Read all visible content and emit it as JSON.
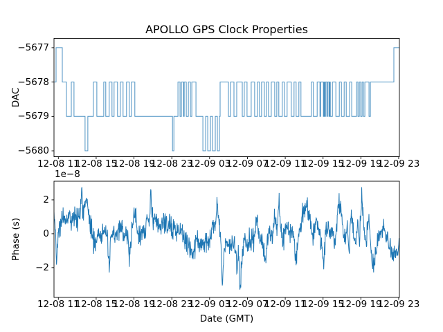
{
  "title": "APOLLO GPS Clock Properties",
  "colors": {
    "line_color": "#1f77b4",
    "axis_color": "#000000",
    "text_color": "#000000",
    "background": "#ffffff"
  },
  "x_axis": {
    "label": "Date (GMT)",
    "tick_labels": [
      "12-08 11",
      "12-08 15",
      "12-08 19",
      "12-08 23",
      "12-09 03",
      "12-09 07",
      "12-09 11",
      "12-09 15",
      "12-09 19",
      "12-09 23"
    ],
    "tick_positions": [
      0.0126,
      0.1221,
      0.2316,
      0.3411,
      0.4505,
      0.56,
      0.6695,
      0.779,
      0.8884,
      0.9979
    ]
  },
  "chart_data": [
    {
      "type": "step",
      "title": "APOLLO GPS Clock Properties",
      "ylabel": "DAC",
      "xlabel": "",
      "yticks": [
        -5677,
        -5678,
        -5679,
        -5680
      ],
      "ytick_labels": [
        "−5677",
        "−5678",
        "−5679",
        "−5680"
      ],
      "ylim": [
        -5680.17,
        -5676.73
      ],
      "x_tick_labels": [
        "12-08 11",
        "12-08 15",
        "12-08 19",
        "12-08 23",
        "12-09 03",
        "12-09 07",
        "12-09 11",
        "12-09 15",
        "12-09 19",
        "12-09 23"
      ],
      "grid": false,
      "legend": false,
      "steps": [
        [
          0.0,
          -5678
        ],
        [
          0.006,
          -5677
        ],
        [
          0.024,
          -5678
        ],
        [
          0.036,
          -5679
        ],
        [
          0.05,
          -5678
        ],
        [
          0.058,
          -5679
        ],
        [
          0.09,
          -5680
        ],
        [
          0.098,
          -5679
        ],
        [
          0.114,
          -5678
        ],
        [
          0.124,
          -5679
        ],
        [
          0.144,
          -5678
        ],
        [
          0.15,
          -5679
        ],
        [
          0.16,
          -5678
        ],
        [
          0.168,
          -5679
        ],
        [
          0.174,
          -5678
        ],
        [
          0.184,
          -5679
        ],
        [
          0.192,
          -5678
        ],
        [
          0.2,
          -5679
        ],
        [
          0.21,
          -5678
        ],
        [
          0.218,
          -5679
        ],
        [
          0.224,
          -5678
        ],
        [
          0.234,
          -5679
        ],
        [
          0.343,
          -5680
        ],
        [
          0.347,
          -5679
        ],
        [
          0.359,
          -5678
        ],
        [
          0.365,
          -5679
        ],
        [
          0.369,
          -5678
        ],
        [
          0.375,
          -5679
        ],
        [
          0.377,
          -5678
        ],
        [
          0.383,
          -5679
        ],
        [
          0.389,
          -5678
        ],
        [
          0.395,
          -5679
        ],
        [
          0.399,
          -5678
        ],
        [
          0.411,
          -5679
        ],
        [
          0.431,
          -5680
        ],
        [
          0.439,
          -5679
        ],
        [
          0.445,
          -5680
        ],
        [
          0.453,
          -5679
        ],
        [
          0.459,
          -5680
        ],
        [
          0.467,
          -5679
        ],
        [
          0.473,
          -5680
        ],
        [
          0.479,
          -5679
        ],
        [
          0.481,
          -5678
        ],
        [
          0.505,
          -5679
        ],
        [
          0.511,
          -5678
        ],
        [
          0.521,
          -5679
        ],
        [
          0.529,
          -5678
        ],
        [
          0.545,
          -5679
        ],
        [
          0.551,
          -5678
        ],
        [
          0.559,
          -5679
        ],
        [
          0.571,
          -5678
        ],
        [
          0.581,
          -5679
        ],
        [
          0.589,
          -5678
        ],
        [
          0.595,
          -5679
        ],
        [
          0.601,
          -5678
        ],
        [
          0.609,
          -5679
        ],
        [
          0.615,
          -5678
        ],
        [
          0.621,
          -5679
        ],
        [
          0.629,
          -5678
        ],
        [
          0.639,
          -5679
        ],
        [
          0.645,
          -5678
        ],
        [
          0.651,
          -5679
        ],
        [
          0.661,
          -5678
        ],
        [
          0.667,
          -5679
        ],
        [
          0.675,
          -5678
        ],
        [
          0.687,
          -5679
        ],
        [
          0.695,
          -5678
        ],
        [
          0.701,
          -5679
        ],
        [
          0.709,
          -5678
        ],
        [
          0.715,
          -5679
        ],
        [
          0.745,
          -5678
        ],
        [
          0.751,
          -5679
        ],
        [
          0.762,
          -5678
        ],
        [
          0.77,
          -5679
        ],
        [
          0.772,
          -5678
        ],
        [
          0.78,
          -5679
        ],
        [
          0.782,
          -5678
        ],
        [
          0.784,
          -5679
        ],
        [
          0.786,
          -5678
        ],
        [
          0.79,
          -5679
        ],
        [
          0.792,
          -5678
        ],
        [
          0.796,
          -5679
        ],
        [
          0.798,
          -5678
        ],
        [
          0.8,
          -5679
        ],
        [
          0.806,
          -5678
        ],
        [
          0.816,
          -5679
        ],
        [
          0.826,
          -5678
        ],
        [
          0.832,
          -5679
        ],
        [
          0.84,
          -5678
        ],
        [
          0.846,
          -5679
        ],
        [
          0.856,
          -5678
        ],
        [
          0.862,
          -5679
        ],
        [
          0.876,
          -5678
        ],
        [
          0.88,
          -5679
        ],
        [
          0.884,
          -5678
        ],
        [
          0.888,
          -5679
        ],
        [
          0.892,
          -5678
        ],
        [
          0.896,
          -5679
        ],
        [
          0.9,
          -5678
        ],
        [
          0.912,
          -5679
        ],
        [
          0.916,
          -5678
        ],
        [
          0.984,
          -5677
        ]
      ]
    },
    {
      "type": "line",
      "ylabel": "Phase (s)",
      "xlabel": "Date (GMT)",
      "offset_text": "1e−8",
      "unit": "1e-8 seconds",
      "yticks": [
        2,
        0,
        -2
      ],
      "ytick_labels": [
        "2",
        "0",
        "−2"
      ],
      "ylim": [
        -3.76,
        3.1
      ],
      "x_tick_labels": [
        "12-08 11",
        "12-08 15",
        "12-08 19",
        "12-08 23",
        "12-09 03",
        "12-09 07",
        "12-09 11",
        "12-09 15",
        "12-09 19",
        "12-09 23"
      ],
      "grid": false,
      "legend": false,
      "noise_sigma": 0.33,
      "samples": 1100,
      "clamp": [
        -3.3,
        2.85
      ],
      "trend": [
        [
          0.0,
          1.0
        ],
        [
          0.004,
          0.3
        ],
        [
          0.008,
          -1.5
        ],
        [
          0.012,
          0.2
        ],
        [
          0.02,
          0.6
        ],
        [
          0.028,
          0.9
        ],
        [
          0.036,
          0.7
        ],
        [
          0.044,
          1.3
        ],
        [
          0.052,
          0.7
        ],
        [
          0.06,
          0.9
        ],
        [
          0.068,
          0.8
        ],
        [
          0.076,
          1.5
        ],
        [
          0.08,
          2.6
        ],
        [
          0.084,
          1.2
        ],
        [
          0.09,
          1.5
        ],
        [
          0.096,
          1.8
        ],
        [
          0.1,
          1.0
        ],
        [
          0.108,
          0.4
        ],
        [
          0.114,
          -0.3
        ],
        [
          0.12,
          -0.7
        ],
        [
          0.128,
          0.1
        ],
        [
          0.136,
          -0.2
        ],
        [
          0.144,
          0.3
        ],
        [
          0.152,
          -0.1
        ],
        [
          0.16,
          -2.0
        ],
        [
          0.164,
          -0.3
        ],
        [
          0.174,
          0.1
        ],
        [
          0.184,
          -0.1
        ],
        [
          0.194,
          0.4
        ],
        [
          0.204,
          0.0
        ],
        [
          0.214,
          -0.2
        ],
        [
          0.218,
          -1.7
        ],
        [
          0.224,
          0.1
        ],
        [
          0.234,
          1.5
        ],
        [
          0.24,
          0.2
        ],
        [
          0.249,
          -0.3
        ],
        [
          0.257,
          0.3
        ],
        [
          0.265,
          -0.4
        ],
        [
          0.269,
          1.6
        ],
        [
          0.275,
          0.3
        ],
        [
          0.281,
          2.4
        ],
        [
          0.287,
          0.5
        ],
        [
          0.295,
          0.8
        ],
        [
          0.305,
          0.4
        ],
        [
          0.315,
          0.7
        ],
        [
          0.325,
          0.3
        ],
        [
          0.335,
          0.6
        ],
        [
          0.341,
          0.2
        ],
        [
          0.349,
          0.5
        ],
        [
          0.357,
          0.1
        ],
        [
          0.365,
          0.4
        ],
        [
          0.373,
          -0.2
        ],
        [
          0.381,
          -0.5
        ],
        [
          0.389,
          -0.4
        ],
        [
          0.397,
          -0.8
        ],
        [
          0.401,
          -1.5
        ],
        [
          0.409,
          -0.6
        ],
        [
          0.417,
          -0.4
        ],
        [
          0.425,
          -0.7
        ],
        [
          0.433,
          -0.5
        ],
        [
          0.441,
          -0.3
        ],
        [
          0.449,
          -0.6
        ],
        [
          0.457,
          0.2
        ],
        [
          0.465,
          0.5
        ],
        [
          0.473,
          1.8
        ],
        [
          0.479,
          0.3
        ],
        [
          0.483,
          -0.5
        ],
        [
          0.487,
          -2.8
        ],
        [
          0.493,
          -0.8
        ],
        [
          0.501,
          -0.6
        ],
        [
          0.509,
          -0.8
        ],
        [
          0.517,
          -0.5
        ],
        [
          0.525,
          -0.9
        ],
        [
          0.531,
          -2.0
        ],
        [
          0.535,
          -1.2
        ],
        [
          0.539,
          -3.25
        ],
        [
          0.545,
          -1.0
        ],
        [
          0.551,
          -0.4
        ],
        [
          0.557,
          -0.7
        ],
        [
          0.565,
          -0.3
        ],
        [
          0.573,
          -0.5
        ],
        [
          0.581,
          0.0
        ],
        [
          0.587,
          0.9
        ],
        [
          0.595,
          -0.3
        ],
        [
          0.603,
          -0.6
        ],
        [
          0.611,
          -1.3
        ],
        [
          0.619,
          -0.2
        ],
        [
          0.627,
          0.2
        ],
        [
          0.633,
          -0.4
        ],
        [
          0.639,
          0.9
        ],
        [
          0.645,
          0.0
        ],
        [
          0.651,
          1.8
        ],
        [
          0.657,
          0.3
        ],
        [
          0.665,
          -0.3
        ],
        [
          0.673,
          0.4
        ],
        [
          0.681,
          0.1
        ],
        [
          0.689,
          0.5
        ],
        [
          0.695,
          -0.4
        ],
        [
          0.701,
          -1.9
        ],
        [
          0.707,
          0.0
        ],
        [
          0.713,
          0.4
        ],
        [
          0.719,
          1.0
        ],
        [
          0.725,
          1.5
        ],
        [
          0.731,
          1.6
        ],
        [
          0.737,
          1.2
        ],
        [
          0.743,
          0.6
        ],
        [
          0.749,
          -0.2
        ],
        [
          0.755,
          0.6
        ],
        [
          0.761,
          0.9
        ],
        [
          0.767,
          0.2
        ],
        [
          0.773,
          -0.5
        ],
        [
          0.781,
          -1.6
        ],
        [
          0.787,
          0.1
        ],
        [
          0.793,
          0.5
        ],
        [
          0.799,
          -0.3
        ],
        [
          0.805,
          0.3
        ],
        [
          0.811,
          -0.6
        ],
        [
          0.817,
          0.2
        ],
        [
          0.825,
          2.0
        ],
        [
          0.831,
          1.1
        ],
        [
          0.837,
          0.2
        ],
        [
          0.843,
          -0.5
        ],
        [
          0.849,
          0.4
        ],
        [
          0.855,
          -0.9
        ],
        [
          0.861,
          1.1
        ],
        [
          0.867,
          0.0
        ],
        [
          0.873,
          -0.6
        ],
        [
          0.879,
          0.4
        ],
        [
          0.885,
          -0.3
        ],
        [
          0.891,
          2.3
        ],
        [
          0.897,
          0.2
        ],
        [
          0.903,
          -0.4
        ],
        [
          0.911,
          1.1
        ],
        [
          0.917,
          -0.8
        ],
        [
          0.921,
          -1.6
        ],
        [
          0.927,
          -1.85
        ],
        [
          0.933,
          -0.9
        ],
        [
          0.941,
          -0.2
        ],
        [
          0.947,
          0.1
        ],
        [
          0.955,
          0.4
        ],
        [
          0.961,
          0.0
        ],
        [
          0.967,
          -0.5
        ],
        [
          0.973,
          -0.8
        ],
        [
          0.981,
          -1.44
        ],
        [
          0.985,
          -0.9
        ],
        [
          0.991,
          -1.3
        ],
        [
          1.0,
          -0.8
        ]
      ]
    }
  ]
}
